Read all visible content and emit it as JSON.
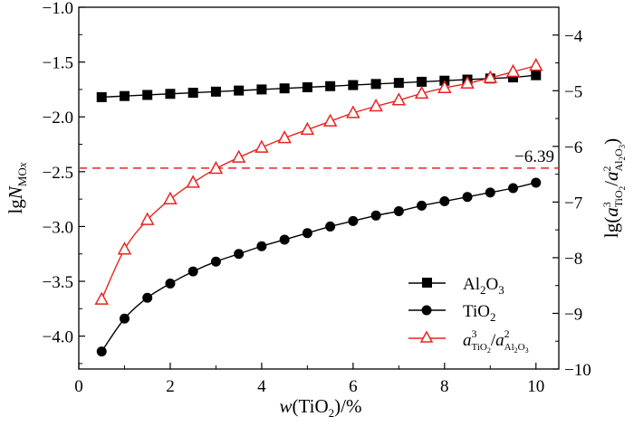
{
  "chart_data": {
    "type": "line",
    "xlabel": "w(TiO2)/%",
    "ylabel_left": "lgN_MOx",
    "ylabel_right": "lg(a^3_TiO2/a^2_Al2O3)",
    "xlim": [
      0,
      10.5
    ],
    "ylim_left": [
      -4.3,
      -1.0
    ],
    "ylim_right": [
      -10,
      -3.5
    ],
    "x_ticks": [
      0,
      2,
      4,
      6,
      8,
      10
    ],
    "y_ticks_left": [
      -4.0,
      -3.5,
      -3.0,
      -2.5,
      -2.0,
      -1.5,
      -1.0
    ],
    "y_ticks_right": [
      -10,
      -9,
      -8,
      -7,
      -6,
      -5,
      -4
    ],
    "x_tick_labels": [
      "0",
      "2",
      "4",
      "6",
      "8",
      "10"
    ],
    "y_tick_labels_left": [
      "−4.0",
      "−3.5",
      "−3.0",
      "−2.5",
      "−2.0",
      "−1.5",
      "−1.0"
    ],
    "y_tick_labels_right": [
      "−10",
      "−9",
      "−8",
      "−7",
      "−6",
      "−5",
      "−4"
    ],
    "grid": false,
    "legend_position": "bottom-right",
    "x": [
      0.5,
      1.0,
      1.5,
      2.0,
      2.5,
      3.0,
      3.5,
      4.0,
      4.5,
      5.0,
      5.5,
      6.0,
      6.5,
      7.0,
      7.5,
      8.0,
      8.5,
      9.0,
      9.5,
      10.0
    ],
    "series": [
      {
        "name": "Al2O3",
        "axis": "left",
        "marker": "square",
        "color": "#000000",
        "values": [
          -1.82,
          -1.81,
          -1.8,
          -1.79,
          -1.78,
          -1.77,
          -1.76,
          -1.75,
          -1.74,
          -1.73,
          -1.72,
          -1.71,
          -1.7,
          -1.69,
          -1.68,
          -1.67,
          -1.66,
          -1.65,
          -1.64,
          -1.62
        ]
      },
      {
        "name": "TiO2",
        "axis": "left",
        "marker": "circle",
        "color": "#000000",
        "values": [
          -4.14,
          -3.84,
          -3.65,
          -3.52,
          -3.41,
          -3.32,
          -3.25,
          -3.18,
          -3.12,
          -3.06,
          -3.0,
          -2.95,
          -2.9,
          -2.86,
          -2.81,
          -2.77,
          -2.73,
          -2.69,
          -2.65,
          -2.6
        ]
      },
      {
        "name": "a3TiO2/a2Al2O3",
        "axis": "right",
        "marker": "triangle-open",
        "color": "#e8251f",
        "values": [
          -8.75,
          -7.85,
          -7.32,
          -6.95,
          -6.65,
          -6.4,
          -6.2,
          -6.02,
          -5.85,
          -5.7,
          -5.55,
          -5.4,
          -5.28,
          -5.17,
          -5.05,
          -4.95,
          -4.87,
          -4.77,
          -4.66,
          -4.55
        ]
      }
    ],
    "reference_line": {
      "axis": "right",
      "value": -6.39,
      "label": "−6.39",
      "color": "#e8251f",
      "style": "dashed"
    }
  }
}
